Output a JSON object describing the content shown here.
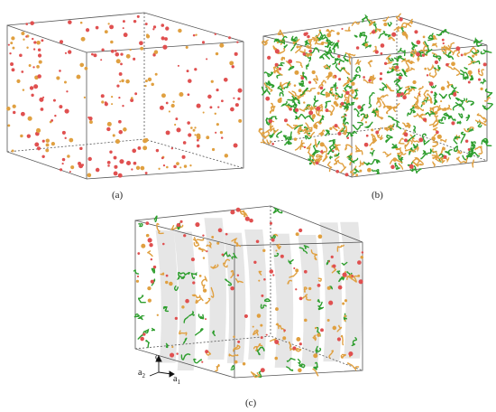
{
  "figure": {
    "panels": [
      {
        "label": "(a)",
        "description_type": "sparse-defect-clusters"
      },
      {
        "label": "(b)",
        "description_type": "dense-dislocation-network"
      },
      {
        "label": "(c)",
        "description_type": "columnar-cells-with-dislocations"
      }
    ],
    "axes": {
      "c": "c",
      "a2": "a",
      "a2_sub": "2",
      "a1": "a",
      "a1_sub": "1"
    },
    "colors": {
      "box_edge": "#555555",
      "defect_red": "#e05050",
      "defect_orange": "#e0a040",
      "dislocation_green": "#2e9e2e",
      "cell_gray": "#c8c8c8"
    }
  }
}
